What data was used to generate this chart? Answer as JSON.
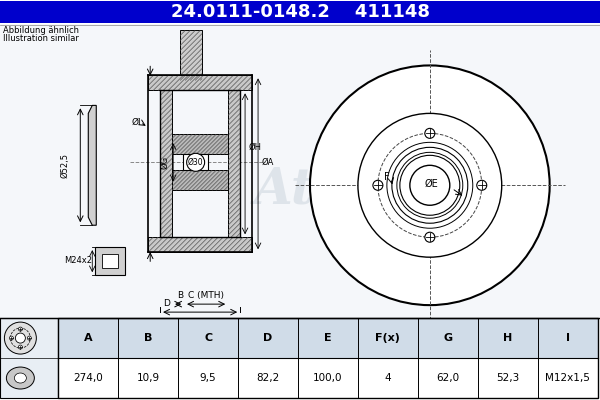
{
  "title_part_number": "24.0111-0148.2",
  "title_ref_number": "411148",
  "title_bg_color": "#0000cc",
  "title_text_color": "#ffffff",
  "subtitle_line1": "Abbildung ähnlich",
  "subtitle_line2": "Illustration similar",
  "bg_color": "#ffffff",
  "diagram_bg_color": "#f0f4f8",
  "table_headers": [
    "A",
    "B",
    "C",
    "D",
    "E",
    "F(x)",
    "G",
    "H",
    "I"
  ],
  "table_values": [
    "274,0",
    "10,9",
    "9,5",
    "82,2",
    "100,0",
    "4",
    "62,0",
    "52,3",
    "M12x1,5"
  ],
  "watermark": "Ate",
  "line_color": "#000000",
  "header_fill_color": "#d0dce8",
  "table_bg_color": "#ffffff"
}
